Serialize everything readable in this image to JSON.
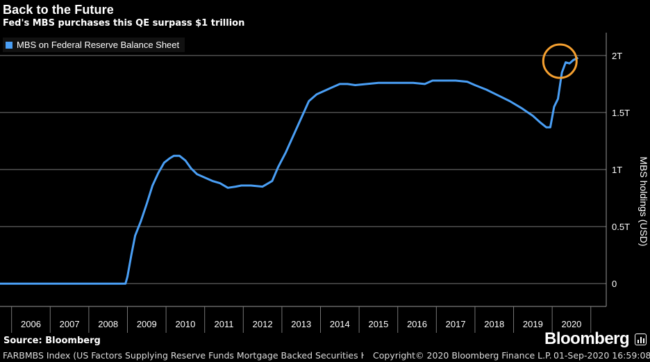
{
  "header": {
    "title": "Back to the Future",
    "subtitle": "Fed's MBS purchases this QE surpass $1 trillion"
  },
  "footer": {
    "source": "Source: Bloomberg",
    "brand": "Bloomberg",
    "description": "FARBMBS Index (US Factors Supplying Reserve Funds Mortgage Backed Securities Hel",
    "copyright": "Copyright© 2020 Bloomberg Finance L.P.",
    "timestamp": "01-Sep-2020 16:59:08"
  },
  "colors": {
    "background": "#000000",
    "line": "#4a9ff5",
    "highlight_circle": "#f5a030",
    "grid": "#777777"
  },
  "chart_data": {
    "type": "line",
    "title": "Back to the Future",
    "subtitle": "Fed's MBS purchases this QE surpass $1 trillion",
    "ylabel": "MBS holdings (USD)",
    "xlabel": "",
    "legend": "top-left",
    "grid": true,
    "y_axis_position": "right",
    "ylim": [
      -0.2,
      2.2
    ],
    "yticks": [
      0,
      0.5,
      1,
      1.5,
      2
    ],
    "ytick_labels": [
      "0",
      "0.5T",
      "1T",
      "1.5T",
      "2T"
    ],
    "xlim": [
      2005.7,
      2021.4
    ],
    "x_tick_labels": [
      "2006",
      "2007",
      "2008",
      "2009",
      "2010",
      "2011",
      "2012",
      "2013",
      "2014",
      "2015",
      "2016",
      "2017",
      "2018",
      "2019",
      "2020"
    ],
    "annotations": [
      {
        "type": "circle",
        "x": 2020.2,
        "y": 1.95,
        "color": "#f5a030"
      }
    ],
    "series": [
      {
        "name": "MBS on Federal Reserve Balance Sheet",
        "color": "#4a9ff5",
        "x": [
          2005.7,
          2008.95,
          2009.0,
          2009.1,
          2009.2,
          2009.35,
          2009.5,
          2009.65,
          2009.8,
          2009.95,
          2010.1,
          2010.2,
          2010.35,
          2010.5,
          2010.65,
          2010.8,
          2011.0,
          2011.2,
          2011.4,
          2011.6,
          2011.8,
          2011.95,
          2012.2,
          2012.5,
          2012.75,
          2012.9,
          2013.1,
          2013.3,
          2013.5,
          2013.7,
          2013.9,
          2014.1,
          2014.3,
          2014.5,
          2014.7,
          2014.9,
          2015.2,
          2015.5,
          2015.8,
          2016.1,
          2016.4,
          2016.7,
          2016.9,
          2017.2,
          2017.5,
          2017.8,
          2018.0,
          2018.3,
          2018.6,
          2018.9,
          2019.2,
          2019.5,
          2019.7,
          2019.85,
          2019.95,
          2020.05,
          2020.15,
          2020.25,
          2020.35,
          2020.45,
          2020.55,
          2020.67
        ],
        "y": [
          0.0,
          0.0,
          0.06,
          0.25,
          0.42,
          0.55,
          0.7,
          0.86,
          0.97,
          1.06,
          1.1,
          1.12,
          1.12,
          1.08,
          1.01,
          0.96,
          0.93,
          0.9,
          0.88,
          0.84,
          0.85,
          0.86,
          0.86,
          0.85,
          0.9,
          1.02,
          1.15,
          1.3,
          1.45,
          1.6,
          1.66,
          1.69,
          1.72,
          1.75,
          1.75,
          1.74,
          1.75,
          1.76,
          1.76,
          1.76,
          1.76,
          1.75,
          1.78,
          1.78,
          1.78,
          1.77,
          1.74,
          1.7,
          1.65,
          1.6,
          1.54,
          1.47,
          1.41,
          1.37,
          1.37,
          1.55,
          1.62,
          1.85,
          1.94,
          1.93,
          1.96,
          1.98
        ]
      }
    ]
  }
}
